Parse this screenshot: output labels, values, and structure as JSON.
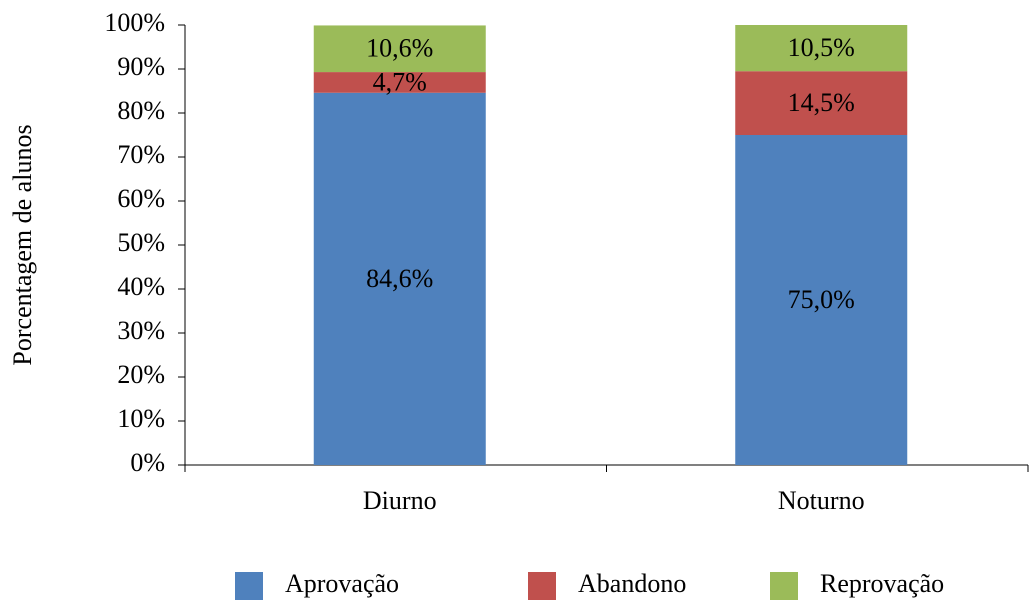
{
  "chart_data": {
    "type": "stacked_bar",
    "y_label": "Porcentagem de alunos",
    "categories": [
      "Diurno",
      "Noturno"
    ],
    "series": [
      {
        "name": "Aprovação",
        "color": "#4f81bd",
        "values": [
          84.6,
          75.0
        ],
        "value_labels": [
          "84,6%",
          "75,0%"
        ]
      },
      {
        "name": "Abandono",
        "color": "#c0504d",
        "values": [
          4.7,
          14.5
        ],
        "value_labels": [
          "4,7%",
          "14,5%"
        ]
      },
      {
        "name": "Reprovação",
        "color": "#9bbb59",
        "values": [
          10.6,
          10.5
        ],
        "value_labels": [
          "10,6%",
          "10,5%"
        ]
      }
    ],
    "ylim": [
      0,
      100
    ],
    "yticks": [
      {
        "value": 0,
        "label": "0%"
      },
      {
        "value": 10,
        "label": "10%"
      },
      {
        "value": 20,
        "label": "20%"
      },
      {
        "value": 30,
        "label": "30%"
      },
      {
        "value": 40,
        "label": "40%"
      },
      {
        "value": 50,
        "label": "50%"
      },
      {
        "value": 60,
        "label": "60%"
      },
      {
        "value": 70,
        "label": "70%"
      },
      {
        "value": 80,
        "label": "80%"
      },
      {
        "value": 90,
        "label": "90%"
      },
      {
        "value": 100,
        "label": "100%"
      }
    ],
    "legend": "bottom"
  }
}
